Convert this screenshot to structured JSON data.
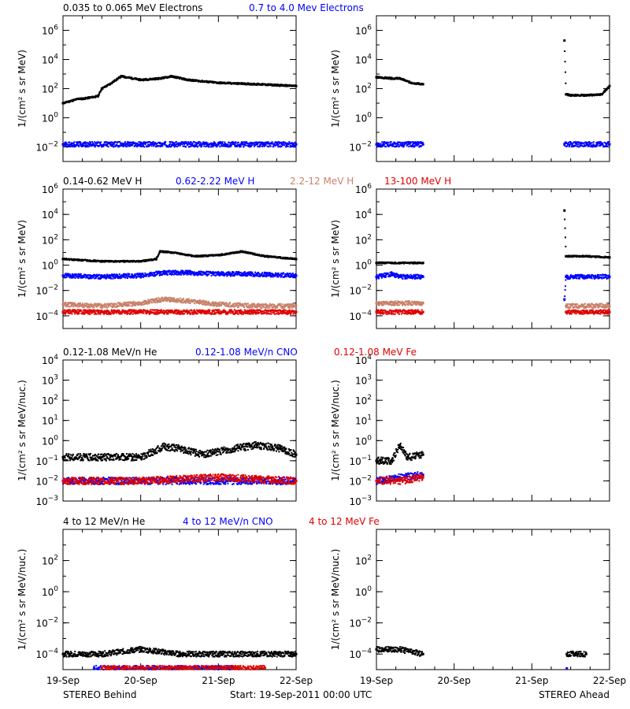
{
  "time_axis": {
    "tick_labels": [
      "19-Sep",
      "20-Sep",
      "21-Sep",
      "22-Sep"
    ],
    "range_days": [
      0,
      3
    ]
  },
  "footer": {
    "left": "STEREO Behind",
    "center": "Start: 19-Sep-2011 00:00 UTC",
    "right": "STEREO Ahead"
  },
  "rows": [
    {
      "legend": [
        {
          "label": "0.035 to 0.065 MeV Electrons",
          "color": "#000000"
        },
        {
          "label": "0.7 to 4.0 Mev Electrons",
          "color": "#0000ff"
        }
      ],
      "ylabel": "1/(cm² s sr MeV)",
      "ylim_log10": [
        -3,
        7
      ],
      "ytick_exponents": [
        -2,
        0,
        2,
        4,
        6
      ]
    },
    {
      "legend": [
        {
          "label": "0.14-0.62 MeV H",
          "color": "#000000"
        },
        {
          "label": "0.62-2.22 MeV H",
          "color": "#0000ff"
        },
        {
          "label": "2.2-12 MeV H",
          "color": "#c8826a"
        },
        {
          "label": "13-100 MeV H",
          "color": "#e00000"
        }
      ],
      "ylabel": "1/(cm² s sr MeV)",
      "ylim_log10": [
        -5,
        6
      ],
      "ytick_exponents": [
        -4,
        -2,
        0,
        2,
        4,
        6
      ]
    },
    {
      "legend": [
        {
          "label": "0.12-1.08 MeV/n He",
          "color": "#000000"
        },
        {
          "label": "0.12-1.08 MeV/n CNO",
          "color": "#0000ff"
        },
        {
          "label": "0.12-1.08 MeV Fe",
          "color": "#e00000"
        }
      ],
      "ylabel": "1/(cm² s sr MeV/nuc.)",
      "ylim_log10": [
        -3,
        4
      ],
      "ytick_exponents": [
        -3,
        -2,
        -1,
        0,
        1,
        2,
        3,
        4
      ]
    },
    {
      "legend": [
        {
          "label": "4 to 12 MeV/n He",
          "color": "#000000"
        },
        {
          "label": "4 to 12 MeV/n CNO",
          "color": "#0000ff"
        },
        {
          "label": "4 to 12 MeV Fe",
          "color": "#e00000"
        }
      ],
      "ylabel": "1/(cm² s sr MeV/nuc.)",
      "ylim_log10": [
        -5,
        4
      ],
      "ytick_exponents": [
        -4,
        -2,
        0,
        2
      ]
    }
  ],
  "chart_data": [
    {
      "type": "scatter",
      "panel": "STEREO Behind",
      "yscale": "log",
      "x_unit": "days since 19-Sep-2011 00:00 UTC",
      "xlim": [
        0,
        3
      ],
      "ylim": [
        0.001,
        10000000
      ],
      "series": [
        {
          "name": "0.035 to 0.065 MeV Electrons",
          "color": "#000000",
          "x": [
            0.0,
            0.2,
            0.25,
            0.45,
            0.5,
            0.6,
            0.75,
            1.0,
            1.25,
            1.4,
            1.6,
            2.0,
            2.5,
            3.0
          ],
          "y": [
            10,
            20,
            20,
            30,
            100,
            200,
            700,
            400,
            500,
            700,
            400,
            250,
            200,
            150
          ]
        },
        {
          "name": "0.7 to 4.0 Mev Electrons",
          "color": "#0000ff",
          "x": [
            0.0,
            1.0,
            2.0,
            3.0
          ],
          "y": [
            0.015,
            0.015,
            0.015,
            0.015
          ]
        }
      ]
    },
    {
      "type": "scatter",
      "panel": "STEREO Ahead",
      "yscale": "log",
      "x_unit": "days since 19-Sep-2011 00:00 UTC",
      "xlim": [
        0,
        3
      ],
      "ylim": [
        0.001,
        10000000
      ],
      "series": [
        {
          "name": "0.035 to 0.065 MeV Electrons",
          "color": "#000000",
          "x": [
            0.0,
            0.2,
            0.3,
            0.45,
            0.6,
            2.42,
            2.44,
            2.5,
            2.7,
            2.9,
            3.0
          ],
          "y": [
            600,
            500,
            500,
            250,
            200,
            200000,
            40,
            35,
            35,
            40,
            150
          ]
        },
        {
          "name": "0.7 to 4.0 Mev Electrons",
          "color": "#0000ff",
          "x": [
            0.0,
            0.6,
            2.42,
            3.0
          ],
          "y": [
            0.015,
            0.015,
            0.015,
            0.015
          ]
        }
      ]
    },
    {
      "type": "scatter",
      "panel": "STEREO Behind",
      "yscale": "log",
      "x_unit": "days since 19-Sep-2011 00:00 UTC",
      "xlim": [
        0,
        3
      ],
      "ylim": [
        1e-05,
        1000000
      ],
      "series": [
        {
          "name": "0.14-0.62 MeV H",
          "color": "#000000",
          "x": [
            0.0,
            0.5,
            1.0,
            1.2,
            1.25,
            1.4,
            1.7,
            2.0,
            2.3,
            2.6,
            3.0
          ],
          "y": [
            3,
            2,
            2,
            3,
            12,
            10,
            5,
            6,
            12,
            5,
            3
          ]
        },
        {
          "name": "0.62-2.22 MeV H",
          "color": "#0000ff",
          "x": [
            0.0,
            0.5,
            1.0,
            1.3,
            1.6,
            2.0,
            2.4,
            3.0
          ],
          "y": [
            0.15,
            0.12,
            0.15,
            0.25,
            0.25,
            0.2,
            0.2,
            0.15
          ]
        },
        {
          "name": "2.2-12 MeV H",
          "color": "#c8826a",
          "x": [
            0.0,
            0.5,
            1.0,
            1.3,
            1.6,
            2.0,
            2.5,
            3.0
          ],
          "y": [
            0.0008,
            0.0006,
            0.001,
            0.002,
            0.0015,
            0.0008,
            0.0006,
            0.0006
          ]
        },
        {
          "name": "13-100 MeV H",
          "color": "#e00000",
          "x": [
            0.0,
            1.0,
            2.0,
            3.0
          ],
          "y": [
            0.0002,
            0.0002,
            0.0002,
            0.0002
          ]
        }
      ]
    },
    {
      "type": "scatter",
      "panel": "STEREO Ahead",
      "yscale": "log",
      "x_unit": "days since 19-Sep-2011 00:00 UTC",
      "xlim": [
        0,
        3
      ],
      "ylim": [
        1e-05,
        1000000
      ],
      "series": [
        {
          "name": "0.14-0.62 MeV H",
          "color": "#000000",
          "x": [
            0.0,
            0.3,
            0.6,
            2.42,
            2.44,
            2.7,
            3.0
          ],
          "y": [
            1.5,
            1.5,
            1.5,
            20000,
            5,
            5,
            4
          ]
        },
        {
          "name": "0.62-2.22 MeV H",
          "color": "#0000ff",
          "x": [
            0.0,
            0.2,
            0.3,
            0.6,
            2.42,
            2.44,
            3.0
          ],
          "y": [
            0.12,
            0.2,
            0.12,
            0.12,
            0.002,
            0.12,
            0.12
          ]
        },
        {
          "name": "2.2-12 MeV H",
          "color": "#c8826a",
          "x": [
            0.0,
            0.6,
            2.44,
            3.0
          ],
          "y": [
            0.001,
            0.001,
            0.0006,
            0.0006
          ]
        },
        {
          "name": "13-100 MeV H",
          "color": "#e00000",
          "x": [
            0.0,
            0.6,
            2.44,
            3.0
          ],
          "y": [
            0.0002,
            0.0002,
            0.0002,
            0.0002
          ]
        }
      ]
    },
    {
      "type": "scatter",
      "panel": "STEREO Behind",
      "yscale": "log",
      "x_unit": "days since 19-Sep-2011 00:00 UTC",
      "xlim": [
        0,
        3
      ],
      "ylim": [
        0.001,
        10000
      ],
      "series": [
        {
          "name": "0.12-1.08 MeV/n He",
          "color": "#000000",
          "x": [
            0.0,
            0.5,
            1.0,
            1.3,
            1.5,
            1.8,
            2.2,
            2.5,
            2.8,
            3.0
          ],
          "y": [
            0.15,
            0.15,
            0.15,
            0.5,
            0.4,
            0.2,
            0.4,
            0.6,
            0.4,
            0.2
          ]
        },
        {
          "name": "0.12-1.08 MeV/n CNO",
          "color": "#0000ff",
          "x": [
            0.0,
            1.0,
            2.0,
            3.0
          ],
          "y": [
            0.01,
            0.01,
            0.01,
            0.01
          ]
        },
        {
          "name": "0.12-1.08 MeV Fe",
          "color": "#e00000",
          "x": [
            0.0,
            1.0,
            2.0,
            3.0
          ],
          "y": [
            0.01,
            0.01,
            0.015,
            0.01
          ]
        }
      ]
    },
    {
      "type": "scatter",
      "panel": "STEREO Ahead",
      "yscale": "log",
      "x_unit": "days since 19-Sep-2011 00:00 UTC",
      "xlim": [
        0,
        3
      ],
      "ylim": [
        0.001,
        10000
      ],
      "series": [
        {
          "name": "0.12-1.08 MeV/n He",
          "color": "#000000",
          "x": [
            0.0,
            0.2,
            0.3,
            0.4,
            0.6
          ],
          "y": [
            0.1,
            0.1,
            0.6,
            0.15,
            0.2
          ]
        },
        {
          "name": "0.12-1.08 MeV/n CNO",
          "color": "#0000ff",
          "x": [
            0.0,
            0.3,
            0.6
          ],
          "y": [
            0.01,
            0.015,
            0.02
          ]
        },
        {
          "name": "0.12-1.08 MeV Fe",
          "color": "#e00000",
          "x": [
            0.0,
            0.3,
            0.6
          ],
          "y": [
            0.01,
            0.01,
            0.015
          ]
        }
      ]
    },
    {
      "type": "scatter",
      "panel": "STEREO Behind",
      "yscale": "log",
      "x_unit": "days since 19-Sep-2011 00:00 UTC",
      "xlim": [
        0,
        3
      ],
      "ylim": [
        1e-05,
        10000
      ],
      "series": [
        {
          "name": "4 to 12 MeV/n He",
          "color": "#000000",
          "x": [
            0.0,
            0.5,
            1.0,
            1.5,
            2.0,
            2.5,
            3.0
          ],
          "y": [
            0.0001,
            0.0001,
            0.0002,
            0.0001,
            0.0001,
            0.0001,
            0.0001
          ]
        },
        {
          "name": "4 to 12 MeV/n CNO",
          "color": "#0000ff",
          "x": [
            0.4,
            1.3,
            2.2
          ],
          "y": [
            1.2e-05,
            1.2e-05,
            1.2e-05
          ]
        },
        {
          "name": "4 to 12 MeV Fe",
          "color": "#e00000",
          "x": [
            0.5,
            1.6,
            2.6
          ],
          "y": [
            1.2e-05,
            1.2e-05,
            1.2e-05
          ]
        }
      ]
    },
    {
      "type": "scatter",
      "panel": "STEREO Ahead",
      "yscale": "log",
      "x_unit": "days since 19-Sep-2011 00:00 UTC",
      "xlim": [
        0,
        3
      ],
      "ylim": [
        1e-05,
        10000
      ],
      "series": [
        {
          "name": "4 to 12 MeV/n He",
          "color": "#000000",
          "x": [
            0.0,
            0.3,
            0.6,
            2.45,
            2.7
          ],
          "y": [
            0.0002,
            0.0002,
            0.0001,
            0.0001,
            0.0001
          ]
        },
        {
          "name": "4 to 12 MeV/n CNO",
          "color": "#0000ff",
          "x": [
            2.45
          ],
          "y": [
            1.2e-05
          ]
        },
        {
          "name": "4 to 12 MeV Fe",
          "color": "#e00000",
          "x": [],
          "y": []
        }
      ]
    }
  ]
}
